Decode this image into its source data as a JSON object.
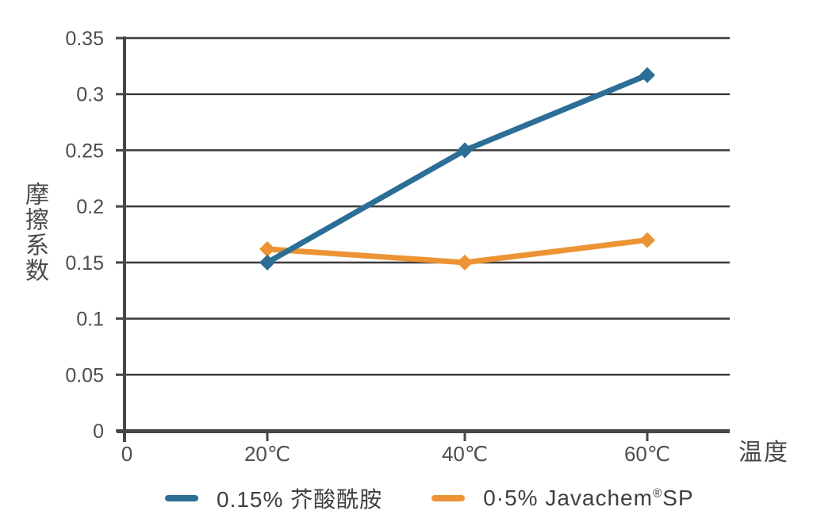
{
  "colors": {
    "background": "#ffffff",
    "grid": "#3c3c3c",
    "axis": "#474747",
    "tick_text": "#4d4d4d",
    "title_text": "#4a4a4a",
    "legend_text": "#3f3f3f",
    "series_blue": "#2b6e96",
    "series_orange": "#ec9435"
  },
  "chart_data": {
    "type": "line",
    "title": "",
    "xlabel": "温度",
    "ylabel": "摩擦系数",
    "x": [
      20,
      40,
      60
    ],
    "x_tick_labels": [
      "0",
      "20℃",
      "40℃",
      "60℃"
    ],
    "y_ticks": [
      0,
      0.05,
      0.1,
      0.15,
      0.2,
      0.25,
      0.3,
      0.35
    ],
    "y_tick_labels": [
      "0",
      "0.05",
      "0.1",
      "0.15",
      "0.2",
      "0.25",
      "0.3",
      "0.35"
    ],
    "ylim": [
      0,
      0.35
    ],
    "grid": "horizontal",
    "legend_position": "bottom",
    "marker": "diamond",
    "series": [
      {
        "id": "erucamide",
        "name": "0.15% 芥酸酰胺",
        "color": "#2b6e96",
        "values": [
          0.15,
          0.25,
          0.317
        ]
      },
      {
        "id": "javachem-sp",
        "name": "0·5% Javachem®SP",
        "color": "#ec9435",
        "values": [
          0.162,
          0.15,
          0.17
        ]
      }
    ]
  },
  "legend": {
    "items": [
      {
        "label": "0.15% 芥酸酰胺",
        "swatch_color": "#2b6e96"
      },
      {
        "label_main": "0·5% Javachem",
        "label_sup": "®",
        "label_end": "SP",
        "swatch_color": "#ec9435"
      }
    ]
  }
}
